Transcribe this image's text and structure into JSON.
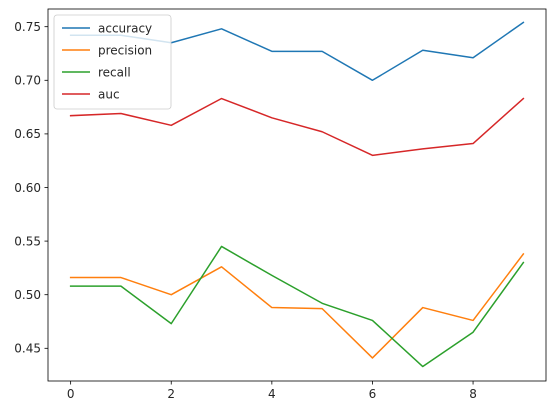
{
  "chart_data": {
    "type": "line",
    "title": "",
    "xlabel": "",
    "ylabel": "",
    "x": [
      0,
      1,
      2,
      3,
      4,
      5,
      6,
      7,
      8,
      9
    ],
    "xlim": [
      -0.45,
      9.45
    ],
    "ylim": [
      0.4195,
      0.7665
    ],
    "xticks": [
      0,
      2,
      4,
      6,
      8
    ],
    "xtick_labels": [
      "0",
      "2",
      "4",
      "6",
      "8"
    ],
    "yticks": [
      0.45,
      0.5,
      0.55,
      0.6,
      0.65,
      0.7,
      0.75
    ],
    "ytick_labels": [
      "0.45",
      "0.50",
      "0.55",
      "0.60",
      "0.65",
      "0.70",
      "0.75"
    ],
    "grid": false,
    "legend_position": "top-left",
    "series": [
      {
        "name": "accuracy",
        "color": "#1f77b4",
        "values": [
          0.742,
          0.742,
          0.735,
          0.748,
          0.727,
          0.727,
          0.7,
          0.728,
          0.721,
          0.754
        ]
      },
      {
        "name": "precision",
        "color": "#ff7f0e",
        "values": [
          0.516,
          0.516,
          0.5,
          0.526,
          0.488,
          0.487,
          0.441,
          0.488,
          0.476,
          0.538
        ]
      },
      {
        "name": "recall",
        "color": "#2ca02c",
        "values": [
          0.508,
          0.508,
          0.473,
          0.545,
          0.518,
          0.492,
          0.476,
          0.433,
          0.465,
          0.53
        ]
      },
      {
        "name": "auc",
        "color": "#d62728",
        "values": [
          0.667,
          0.669,
          0.658,
          0.683,
          0.665,
          0.652,
          0.63,
          0.636,
          0.641,
          0.683
        ]
      }
    ]
  }
}
